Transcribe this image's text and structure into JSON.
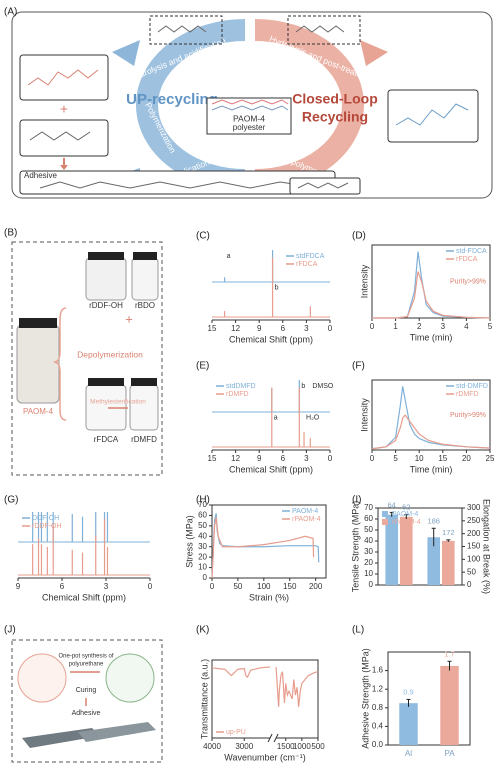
{
  "diagram": {
    "panel_a": {
      "label": "(A)",
      "hydrolysis_left": "Hydrolysis and acidification",
      "hydrolysis_right": "Hydrolysis and post-treatment",
      "up_recycling": "UP-recycling",
      "closed_loop": [
        "Closed-Loop",
        "Recycling"
      ],
      "center": [
        "PAOM-4",
        "polyester"
      ],
      "polymerization": "Polymerization",
      "application": "Application",
      "repolymerization": "Repolymerization",
      "adhesive": "Adhesive",
      "plus": "+"
    },
    "panel_b": {
      "label": "(B)",
      "paom": "PAOM-4",
      "rddf": "rDDF-OH",
      "rbdo": "rBDO",
      "plus": "+",
      "depolymerization": "Depolymerization",
      "rfdca": "rFDCA",
      "rdmfd": "rDMFD",
      "methylesterification": "Methylesterification"
    },
    "panel_j": {
      "label": "(J)",
      "synthesis": [
        "One-pot synthesis of",
        "polyurethane"
      ],
      "curing": "Curing",
      "adhesive": "Adhesive"
    }
  },
  "chart_data": [
    {
      "label": "(C)",
      "type": "nmr",
      "xlabel": "Chemical Shift (ppm)",
      "xlim": [
        15,
        0
      ],
      "xticks": [
        15,
        12,
        9,
        6,
        3,
        0
      ],
      "ylim": [
        0,
        100
      ],
      "legend": "upper right",
      "series": [
        {
          "name": "stdFDCA",
          "color": "#7fb0d8",
          "x": [
            13.4,
            7.3
          ],
          "values": [
            8,
            100
          ]
        },
        {
          "name": "rFDCA",
          "color": "#e79c8c",
          "x": [
            13.4,
            7.3,
            2.5
          ],
          "values": [
            10,
            100,
            18
          ]
        }
      ],
      "annotations": [
        {
          "text": "a",
          "x": 13.4
        },
        {
          "text": "b",
          "x": 7.3
        }
      ]
    },
    {
      "label": "(D)",
      "type": "line",
      "xlabel": "Time (min)",
      "ylabel": "Intensity",
      "xlim": [
        0,
        5
      ],
      "xticks": [
        0,
        1,
        2,
        3,
        4,
        5
      ],
      "ylim": [
        0,
        110
      ],
      "legend": "upper right",
      "annotation": "Purity>99%",
      "series": [
        {
          "name": "std-FDCA",
          "color": "#7fb0d8",
          "x": [
            0,
            1,
            1.5,
            1.8,
            1.95,
            2.1,
            2.3,
            2.6,
            3,
            4,
            5
          ],
          "values": [
            0,
            0,
            2,
            40,
            100,
            60,
            20,
            8,
            3,
            1,
            0
          ]
        },
        {
          "name": "rFDCA",
          "color": "#e79c8c",
          "x": [
            0,
            1,
            1.5,
            1.8,
            1.95,
            2.1,
            2.3,
            2.6,
            3,
            4,
            5
          ],
          "values": [
            0,
            0,
            2,
            30,
            70,
            55,
            25,
            10,
            4,
            1,
            0
          ]
        }
      ]
    },
    {
      "label": "(E)",
      "type": "nmr",
      "xlabel": "Chemical Shift (ppm)",
      "xlim": [
        15,
        0
      ],
      "xticks": [
        15,
        12,
        9,
        6,
        3,
        0
      ],
      "ylim": [
        0,
        100
      ],
      "legend": "upper left",
      "series": [
        {
          "name": "stdDMFD",
          "color": "#7fb0d8",
          "x": [
            7.4,
            3.9
          ],
          "values": [
            40,
            100
          ]
        },
        {
          "name": "rDMFD",
          "color": "#e79c8c",
          "x": [
            7.4,
            3.9,
            3.3,
            2.5
          ],
          "values": [
            100,
            100,
            25,
            15
          ]
        }
      ],
      "annotations": [
        {
          "text": "b",
          "x": 3.9
        },
        {
          "text": "a",
          "x": 7.4
        },
        {
          "text": "DMSO",
          "x": 2.5
        },
        {
          "text": "H₂O",
          "x": 3.3
        }
      ]
    },
    {
      "label": "(F)",
      "type": "line",
      "xlabel": "Time (min)",
      "ylabel": "Intensity",
      "xlim": [
        0,
        25
      ],
      "xticks": [
        0,
        5,
        10,
        15,
        20,
        25
      ],
      "ylim": [
        0,
        110
      ],
      "legend": "upper right",
      "annotation": "Purity>99%",
      "series": [
        {
          "name": "std-DMFD",
          "color": "#7fb0d8",
          "x": [
            0,
            3,
            5,
            6,
            6.5,
            7,
            8,
            9,
            10,
            12,
            15,
            20,
            25
          ],
          "values": [
            2,
            5,
            20,
            70,
            100,
            80,
            40,
            25,
            18,
            12,
            8,
            5,
            3
          ]
        },
        {
          "name": "rDMFD",
          "color": "#e79c8c",
          "x": [
            0,
            3,
            5,
            6,
            6.5,
            7,
            8,
            9,
            10,
            12,
            15,
            20,
            25
          ],
          "values": [
            2,
            5,
            15,
            35,
            50,
            55,
            45,
            35,
            25,
            15,
            9,
            5,
            3
          ]
        }
      ]
    },
    {
      "label": "(G)",
      "type": "nmr",
      "xlabel": "Chemical Shift (ppm)",
      "xlim": [
        9,
        0
      ],
      "xticks": [
        9,
        6,
        3,
        0
      ],
      "ylim": [
        0,
        100
      ],
      "legend": "upper left",
      "series": [
        {
          "name": "DDF-OH",
          "color": "#7fb0d8",
          "x": [
            8.0,
            7.6,
            7.4,
            7.0,
            6.6,
            5.3,
            4.6,
            3.7,
            3.1,
            2.9
          ],
          "values": [
            60,
            70,
            60,
            55,
            100,
            50,
            45,
            75,
            60,
            55
          ]
        },
        {
          "name": "rDDF-OH",
          "color": "#e79c8c",
          "x": [
            8.0,
            7.6,
            7.4,
            7.0,
            6.6,
            5.3,
            4.6,
            3.7,
            3.1,
            2.9
          ],
          "values": [
            55,
            65,
            55,
            50,
            90,
            45,
            40,
            70,
            100,
            50
          ]
        }
      ]
    },
    {
      "label": "(H)",
      "type": "line",
      "xlabel": "Strain (%)",
      "ylabel": "Stress (MPa)",
      "xlim": [
        0,
        220
      ],
      "xticks": [
        0,
        50,
        100,
        150,
        200
      ],
      "ylim": [
        0,
        70
      ],
      "yticks": [
        0,
        10,
        20,
        30,
        40,
        50,
        60,
        70
      ],
      "legend": "upper right",
      "series": [
        {
          "name": "PAOM-4",
          "color": "#7fb0d8",
          "x": [
            0,
            5,
            8,
            10,
            15,
            20,
            50,
            100,
            150,
            180,
            200,
            205,
            206
          ],
          "values": [
            0,
            55,
            62,
            45,
            33,
            31,
            30,
            30,
            31,
            31,
            31,
            30,
            15
          ]
        },
        {
          "name": "rPAOM-4",
          "color": "#e79c8c",
          "x": [
            0,
            5,
            8,
            12,
            20,
            50,
            100,
            150,
            180,
            195,
            196
          ],
          "values": [
            0,
            50,
            58,
            40,
            30,
            30,
            32,
            36,
            40,
            38,
            20
          ]
        }
      ]
    },
    {
      "label": "(I)",
      "type": "bar",
      "ylabel": "Tensile Strength (MPa)",
      "y2label": "Elongation at Break (%)",
      "categories": [
        null,
        null
      ],
      "category_axes": [
        "y",
        "y2"
      ],
      "ylim": [
        0,
        70
      ],
      "yticks": [
        0,
        10,
        20,
        30,
        40,
        50,
        60,
        70
      ],
      "y2lim": [
        0,
        300
      ],
      "y2ticks": [
        0,
        50,
        100,
        150,
        200,
        250,
        300
      ],
      "legend": "upper left",
      "series": [
        {
          "name": "PAOM-4",
          "color": "#8fbbe0",
          "values": [
            64,
            186
          ],
          "errors": [
            2,
            35
          ]
        },
        {
          "name": "rPAOM-4",
          "color": "#eba99b",
          "values": [
            62,
            172
          ],
          "errors": [
            2,
            4
          ]
        }
      ]
    },
    {
      "label": "(K)",
      "type": "line",
      "xlabel": "Wavenumber (cm⁻¹)",
      "ylabel": "Transmittance (a.u.)",
      "xlim": [
        4000,
        500
      ],
      "xbreak": [
        2200,
        1800
      ],
      "xticks": [
        4000,
        3000,
        1500,
        1000,
        500
      ],
      "ylim": [
        0,
        100
      ],
      "legend": "lower left",
      "series": [
        {
          "name": "up-PU",
          "color": "#e79c8c",
          "x": [
            4000,
            3600,
            3400,
            3200,
            3000,
            2950,
            2900,
            2800,
            2500,
            2200,
            2000,
            1800,
            1720,
            1700,
            1650,
            1600,
            1540,
            1500,
            1450,
            1400,
            1300,
            1250,
            1200,
            1150,
            1100,
            1050,
            1000,
            900,
            800,
            700,
            600,
            500
          ],
          "values": [
            90,
            88,
            80,
            88,
            89,
            80,
            78,
            87,
            90,
            91,
            null,
            91,
            40,
            60,
            80,
            85,
            45,
            70,
            55,
            60,
            50,
            75,
            55,
            65,
            40,
            60,
            70,
            75,
            80,
            82,
            84,
            85
          ]
        }
      ]
    },
    {
      "label": "(L)",
      "type": "bar",
      "ylabel": "Adhesive Strength (MPa)",
      "categories": [
        "Al",
        "PA"
      ],
      "values": [
        0.9,
        1.7
      ],
      "errors": [
        0.08,
        0.1
      ],
      "colors": [
        "#8fbbe0",
        "#eba99b"
      ],
      "ylim": [
        0,
        2
      ],
      "yticks": [
        {
          "value": 0,
          "label": "0.0"
        },
        0.4,
        0.8,
        1.2,
        1.6
      ]
    }
  ]
}
